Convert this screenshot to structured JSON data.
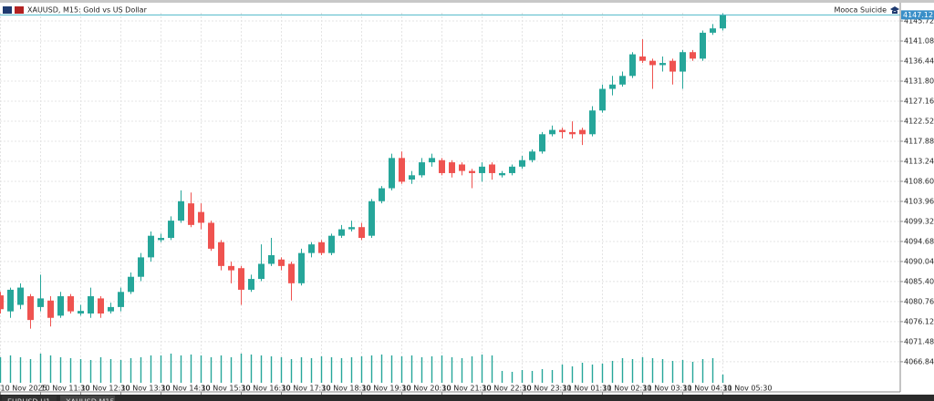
{
  "chart_data": {
    "type": "candlestick",
    "title": "XAUUSD, M15:  Gold vs US Dollar",
    "expert_name": "Mooca Suicide",
    "tabs": [
      "EURUSD,H1",
      "XAUUSD,M15"
    ],
    "current_price": {
      "value": 4147.12,
      "label": "4147.12"
    },
    "up_color": "#26a69a",
    "down_color": "#ef5350",
    "volume_color": "#26a69a",
    "grid": true,
    "ylim": [
      4060.28,
      4147.62
    ],
    "yticks": [
      4145.72,
      4141.08,
      4136.44,
      {
        "value": 4131.8,
        "label": "4131.80"
      },
      4127.16,
      4122.52,
      4117.88,
      4113.24,
      {
        "value": 4108.6,
        "label": "4108.60"
      },
      4103.96,
      4099.32,
      4094.68,
      4090.04,
      {
        "value": 4085.4,
        "label": "4085.40"
      },
      4080.76,
      4076.12,
      4071.48,
      4066.84
    ],
    "categories": [
      "10 Nov 2025",
      null,
      null,
      null,
      "10 Nov 11:30",
      null,
      null,
      null,
      "10 Nov 12:30",
      null,
      null,
      null,
      "10 Nov 13:30",
      null,
      null,
      null,
      "10 Nov 14:30",
      null,
      null,
      null,
      "10 Nov 15:30",
      null,
      null,
      null,
      "10 Nov 16:30",
      null,
      null,
      null,
      "10 Nov 17:30",
      null,
      null,
      null,
      "10 Nov 18:30",
      null,
      null,
      null,
      "10 Nov 19:30",
      null,
      null,
      null,
      "10 Nov 20:30",
      null,
      null,
      null,
      "10 Nov 21:30",
      null,
      null,
      null,
      "10 Nov 22:30",
      null,
      null,
      null,
      "10 Nov 23:30",
      null,
      null,
      null,
      "11 Nov 01:30",
      null,
      null,
      null,
      "11 Nov 02:30",
      null,
      null,
      null,
      "11 Nov 03:30",
      null,
      null,
      null,
      "11 Nov 04:30",
      null,
      null,
      null,
      "11 Nov 05:30"
    ],
    "open": [
      4082.2,
      4078.5,
      4080,
      4082,
      4079.5,
      4081,
      4077.5,
      4082,
      4078,
      4078,
      4081.5,
      4078.5,
      4079.5,
      4083,
      4086.5,
      4091,
      4095,
      4095.5,
      4099.5,
      4103.5,
      4101.5,
      4099,
      4094.5,
      4089,
      4088.5,
      4083.5,
      4086,
      4089.5,
      4090.5,
      4089.5,
      4085,
      4092,
      4094.5,
      4092,
      4096,
      4097.5,
      4098,
      4096,
      4104,
      4107,
      4114,
      4109,
      4110,
      4113,
      4113.5,
      4113,
      4112.5,
      4111,
      4110.5,
      4112.5,
      4110,
      4110.5,
      4112,
      4113.5,
      4115.5,
      4119.5,
      4120.5,
      4120,
      4120.5,
      4119.5,
      4125,
      4130,
      4131,
      4133,
      4137.5,
      4136.5,
      4135.5,
      4136.5,
      4134,
      4138.5,
      4137,
      4143,
      4144
    ],
    "high": [
      4083,
      4084,
      4085,
      4082.5,
      4087,
      4082,
      4083,
      4082.5,
      4080,
      4084,
      4082,
      4080.5,
      4084,
      4087.5,
      4092,
      4097,
      4096.5,
      4100.5,
      4106.5,
      4106,
      4103.5,
      4099.5,
      4095,
      4090,
      4089,
      4087,
      4094,
      4095.5,
      4091,
      4090,
      4093,
      4094.5,
      4095,
      4096.5,
      4098.5,
      4099.5,
      4099,
      4104.5,
      4107.5,
      4115,
      4115.5,
      4111,
      4114,
      4115,
      4114,
      4113.5,
      4113,
      4111.5,
      4113,
      4113,
      4111,
      4112.5,
      4114.5,
      4116,
      4120,
      4121.5,
      4121,
      4122.5,
      4121,
      4126,
      4131,
      4133,
      4134,
      4138.5,
      4141.5,
      4137,
      4137.5,
      4137,
      4139,
      4139,
      4143.5,
      4145,
      4147.5
    ],
    "low": [
      4078,
      4077,
      4079,
      4074.5,
      4078.5,
      4075,
      4077,
      4078,
      4077.5,
      4077,
      4077,
      4078,
      4078.5,
      4082.5,
      4085.5,
      4090,
      4094.5,
      4095,
      4099,
      4098,
      4097.5,
      4092.5,
      4088,
      4085,
      4080,
      4083,
      4085.5,
      4089,
      4088,
      4081,
      4084.5,
      4091,
      4091.5,
      4091.5,
      4095.5,
      4097,
      4095,
      4095.5,
      4103.5,
      4106.5,
      4108,
      4108,
      4109.5,
      4112,
      4110,
      4109.5,
      4110,
      4107,
      4108.5,
      4109,
      4109.5,
      4110,
      4111.5,
      4113,
      4115,
      4119,
      4118.5,
      4118.5,
      4117,
      4119,
      4124.5,
      4128.5,
      4130.5,
      4132.5,
      4136,
      4130,
      4134,
      4131,
      4130,
      4136.5,
      4136.5,
      4142.5,
      4143.5
    ],
    "close": [
      4079,
      4083.5,
      4084,
      4076.5,
      4081.5,
      4077,
      4082,
      4078.5,
      4078.6,
      4082,
      4078,
      4079.5,
      4083,
      4086.5,
      4091,
      4096,
      4095.5,
      4099.5,
      4104,
      4098.5,
      4099,
      4093,
      4089,
      4088,
      4083.5,
      4086,
      4089.5,
      4091.5,
      4089,
      4085,
      4092,
      4094,
      4092,
      4096,
      4097.5,
      4098,
      4095.5,
      4104,
      4107,
      4114,
      4108.5,
      4110,
      4113,
      4114,
      4110.5,
      4110.5,
      4111,
      4110.5,
      4112,
      4110.5,
      4110.5,
      4112,
      4113.5,
      4115.5,
      4119.5,
      4120.5,
      4120,
      4119.5,
      4119.5,
      4125,
      4130,
      4131,
      4133,
      4138,
      4136.5,
      4135.5,
      4136,
      4134,
      4138.5,
      4137,
      4143,
      4144,
      4147.12
    ],
    "volume": [
      28,
      30,
      28,
      26,
      32,
      30,
      28,
      27,
      26,
      25,
      28,
      26,
      25,
      27,
      28,
      30,
      30,
      32,
      30,
      31,
      30,
      28,
      30,
      28,
      32,
      31,
      30,
      29,
      28,
      26,
      28,
      27,
      29,
      28,
      27,
      28,
      29,
      30,
      31,
      30,
      29,
      30,
      28,
      29,
      30,
      28,
      27,
      29,
      31,
      30,
      13,
      12,
      14,
      13,
      15,
      14,
      20,
      18,
      22,
      20,
      21,
      24,
      27,
      26,
      28,
      27,
      26,
      24,
      25,
      23,
      26,
      27,
      9
    ],
    "volume_lim": [
      0,
      40
    ]
  }
}
